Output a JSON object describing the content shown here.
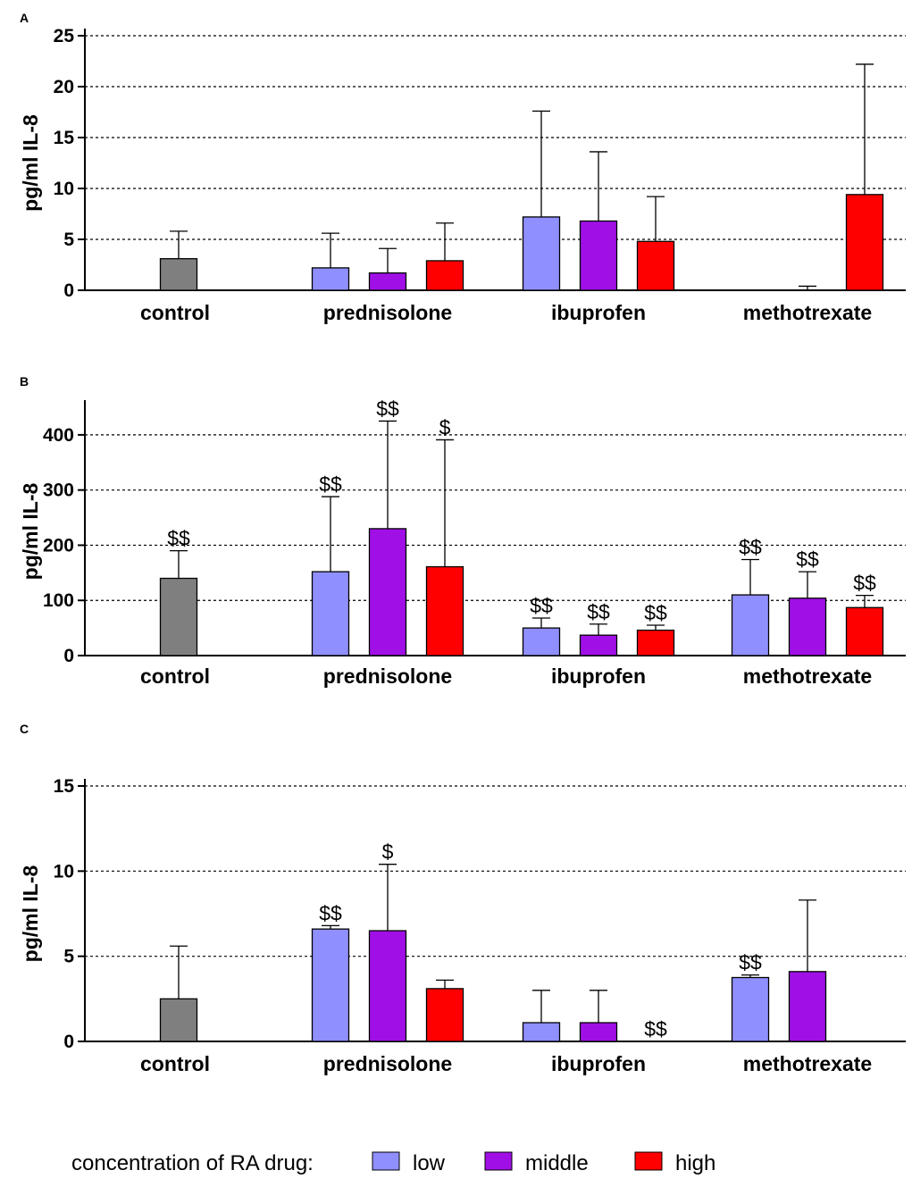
{
  "chart_data": [
    {
      "type": "bar",
      "panel": "A",
      "ylabel": "pg/ml IL-8",
      "xlabel": "",
      "ylim": [
        0,
        25
      ],
      "yticks": [
        "0",
        "5",
        "10",
        "15",
        "20",
        "25"
      ],
      "grid": true,
      "categories": [
        "control",
        "prednisolone",
        "ibuprofen",
        "methotrexate"
      ],
      "bars": [
        {
          "category": "control",
          "series": "control",
          "value": 3.1,
          "error": 2.7,
          "sig": ""
        },
        {
          "category": "prednisolone",
          "series": "low",
          "value": 2.2,
          "error": 3.4,
          "sig": ""
        },
        {
          "category": "prednisolone",
          "series": "middle",
          "value": 1.7,
          "error": 2.4,
          "sig": ""
        },
        {
          "category": "prednisolone",
          "series": "high",
          "value": 2.9,
          "error": 3.7,
          "sig": ""
        },
        {
          "category": "ibuprofen",
          "series": "low",
          "value": 7.2,
          "error": 10.4,
          "sig": ""
        },
        {
          "category": "ibuprofen",
          "series": "middle",
          "value": 6.8,
          "error": 6.8,
          "sig": ""
        },
        {
          "category": "ibuprofen",
          "series": "high",
          "value": 4.8,
          "error": 4.4,
          "sig": ""
        },
        {
          "category": "methotrexate",
          "series": "low",
          "value": 0,
          "error": 0,
          "sig": ""
        },
        {
          "category": "methotrexate",
          "series": "middle",
          "value": 0,
          "error": 0.4,
          "sig": ""
        },
        {
          "category": "methotrexate",
          "series": "high",
          "value": 9.4,
          "error": 12.8,
          "sig": ""
        }
      ]
    },
    {
      "type": "bar",
      "panel": "B",
      "ylabel": "pg/ml IL-8",
      "xlabel": "",
      "ylim": [
        0,
        450
      ],
      "yticks": [
        "0",
        "100",
        "200",
        "300",
        "400"
      ],
      "grid": true,
      "categories": [
        "control",
        "prednisolone",
        "ibuprofen",
        "methotrexate"
      ],
      "bars": [
        {
          "category": "control",
          "series": "control",
          "value": 140,
          "error": 50,
          "sig": "$$"
        },
        {
          "category": "prednisolone",
          "series": "low",
          "value": 152,
          "error": 136,
          "sig": "$$"
        },
        {
          "category": "prednisolone",
          "series": "middle",
          "value": 230,
          "error": 195,
          "sig": "$$"
        },
        {
          "category": "prednisolone",
          "series": "high",
          "value": 161,
          "error": 230,
          "sig": "$"
        },
        {
          "category": "ibuprofen",
          "series": "low",
          "value": 50,
          "error": 18,
          "sig": "$$"
        },
        {
          "category": "ibuprofen",
          "series": "middle",
          "value": 37,
          "error": 20,
          "sig": "$$"
        },
        {
          "category": "ibuprofen",
          "series": "high",
          "value": 46,
          "error": 9,
          "sig": "$$"
        },
        {
          "category": "methotrexate",
          "series": "low",
          "value": 110,
          "error": 64,
          "sig": "$$"
        },
        {
          "category": "methotrexate",
          "series": "middle",
          "value": 104,
          "error": 48,
          "sig": "$$"
        },
        {
          "category": "methotrexate",
          "series": "high",
          "value": 87,
          "error": 22,
          "sig": "$$"
        }
      ]
    },
    {
      "type": "bar",
      "panel": "C",
      "ylabel": "pg/ml IL-8",
      "xlabel": "",
      "ylim": [
        0,
        15
      ],
      "yticks": [
        "0",
        "5",
        "10",
        "15"
      ],
      "grid": true,
      "categories": [
        "control",
        "prednisolone",
        "ibuprofen",
        "methotrexate"
      ],
      "bars": [
        {
          "category": "control",
          "series": "control",
          "value": 2.5,
          "error": 3.1,
          "sig": ""
        },
        {
          "category": "prednisolone",
          "series": "low",
          "value": 6.6,
          "error": 0.2,
          "sig": "$$"
        },
        {
          "category": "prednisolone",
          "series": "middle",
          "value": 6.5,
          "error": 3.9,
          "sig": "$"
        },
        {
          "category": "prednisolone",
          "series": "high",
          "value": 3.1,
          "error": 0.5,
          "sig": ""
        },
        {
          "category": "ibuprofen",
          "series": "low",
          "value": 1.1,
          "error": 1.9,
          "sig": ""
        },
        {
          "category": "ibuprofen",
          "series": "middle",
          "value": 1.1,
          "error": 1.9,
          "sig": ""
        },
        {
          "category": "ibuprofen",
          "series": "high",
          "value": 0,
          "error": 0,
          "sig": "$$"
        },
        {
          "category": "methotrexate",
          "series": "low",
          "value": 3.75,
          "error": 0.15,
          "sig": "$$"
        },
        {
          "category": "methotrexate",
          "series": "middle",
          "value": 4.1,
          "error": 4.2,
          "sig": ""
        },
        {
          "category": "methotrexate",
          "series": "high",
          "value": 0,
          "error": 0,
          "sig": ""
        }
      ]
    }
  ],
  "colors": {
    "control": "#7f7f7f",
    "low": "#8f8fff",
    "middle": "#a010e6",
    "high": "#ff0000"
  },
  "legend": {
    "title": "concentration of RA drug:",
    "items": [
      {
        "key": "low",
        "label": "low"
      },
      {
        "key": "middle",
        "label": "middle"
      },
      {
        "key": "high",
        "label": "high"
      }
    ]
  }
}
